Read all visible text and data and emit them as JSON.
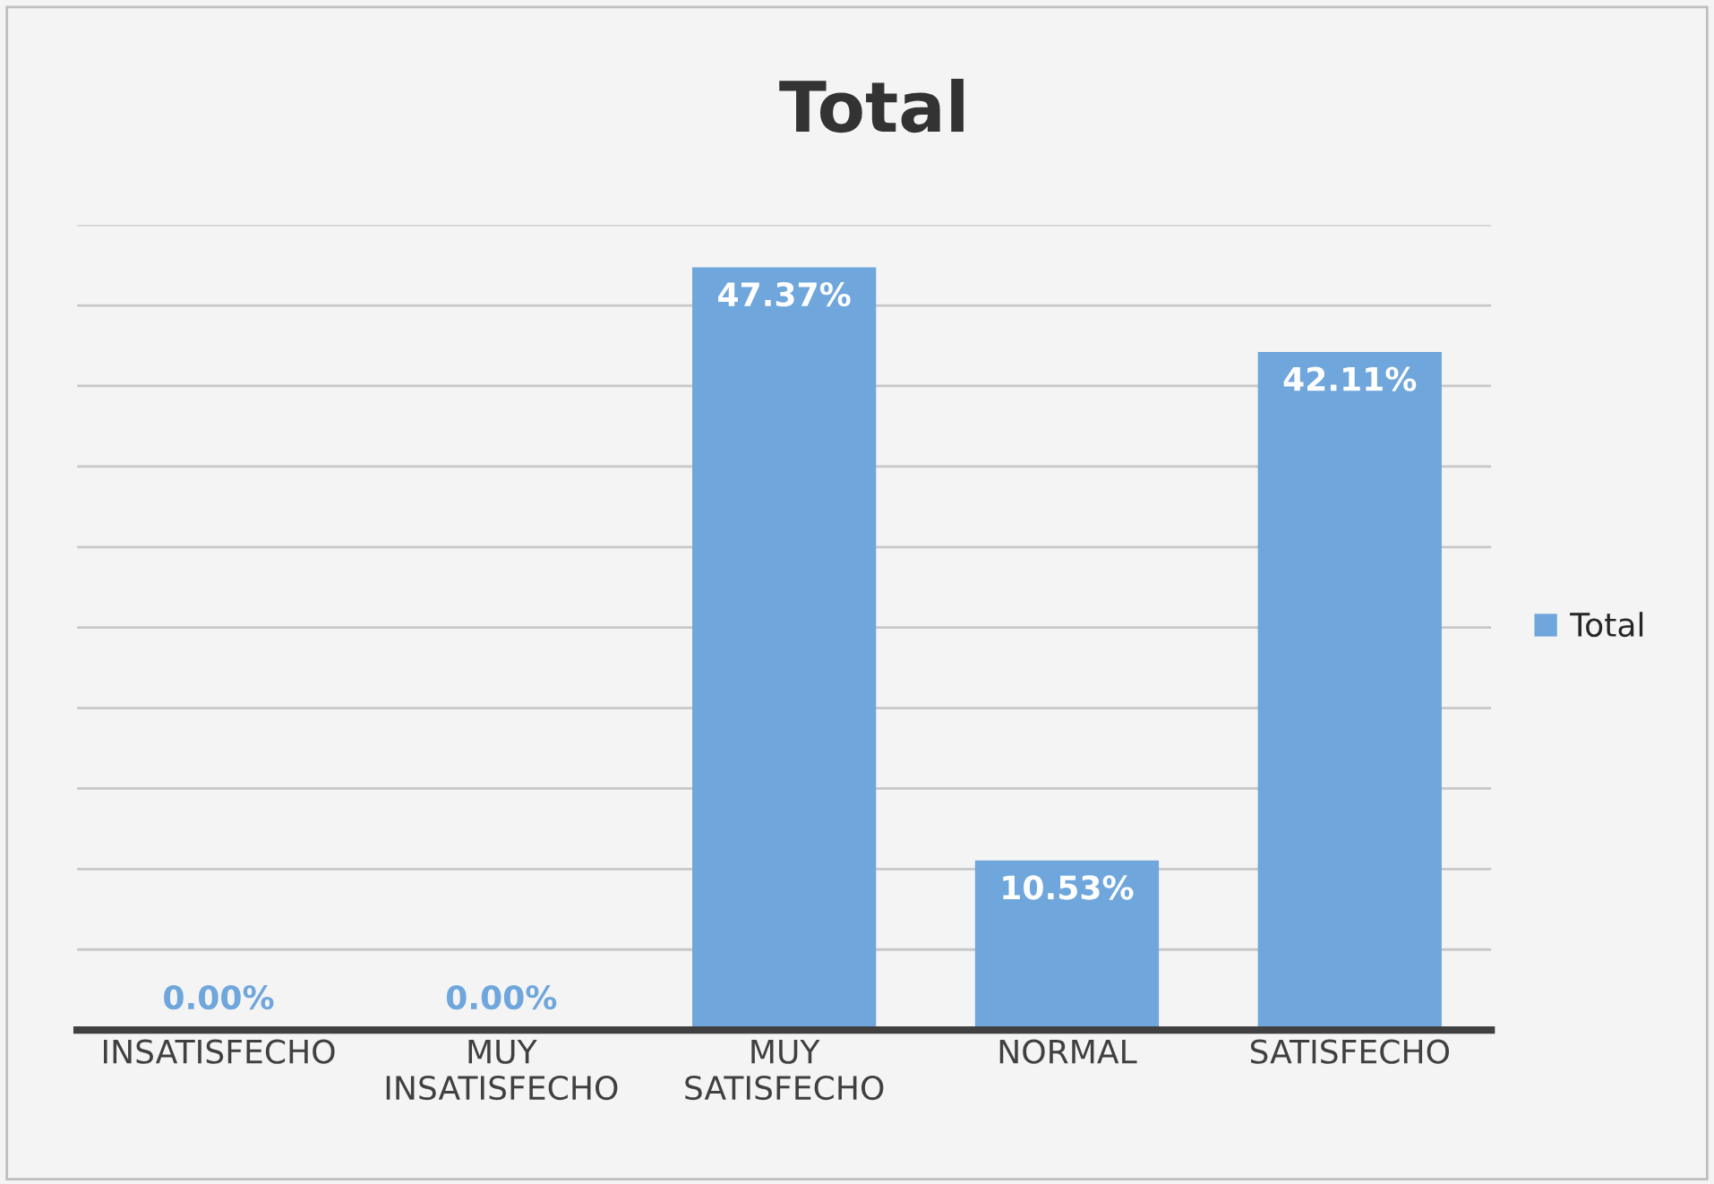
{
  "chart_data": {
    "type": "bar",
    "title": "Total",
    "categories": [
      "INSATISFECHO",
      "MUY INSATISFECHO",
      "MUY SATISFECHO",
      "NORMAL",
      "SATISFECHO"
    ],
    "series": [
      {
        "name": "Total",
        "color": "#6fa6dc",
        "values": [
          0.0,
          0.0,
          47.37,
          10.53,
          42.11
        ],
        "value_labels": [
          "0.00%",
          "0.00%",
          "47.37%",
          "10.53%",
          "42.11%"
        ]
      }
    ],
    "ylim": [
      0,
      50
    ],
    "yticks": [
      0,
      5,
      10,
      15,
      20,
      25,
      30,
      35,
      40,
      45,
      50
    ],
    "tick_labels": "x",
    "grid": "y",
    "legend": "right"
  }
}
